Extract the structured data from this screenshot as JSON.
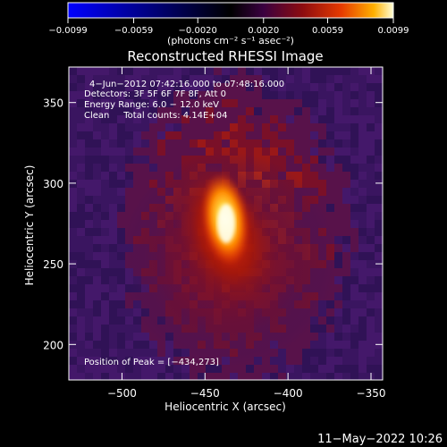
{
  "chart_data": {
    "type": "heatmap",
    "title": "Reconstructed RHESSI Image",
    "xlabel": "Heliocentric X (arcsec)",
    "ylabel": "Heliocentric Y (arcsec)",
    "xlim": [
      -532,
      -343
    ],
    "ylim": [
      178,
      372
    ],
    "x_ticks": [
      {
        "value": -500,
        "label": "−500"
      },
      {
        "value": -450,
        "label": "−450"
      },
      {
        "value": -400,
        "label": "−400"
      },
      {
        "value": -350,
        "label": "−350"
      }
    ],
    "y_ticks": [
      {
        "value": 200,
        "label": "200"
      },
      {
        "value": 250,
        "label": "250"
      },
      {
        "value": 300,
        "label": "300"
      },
      {
        "value": 350,
        "label": "350"
      }
    ],
    "annotations": [
      "4−Jun−2012 07:42:16.000 to 07:48:16.000",
      "Detectors: 3F 5F 6F 7F 8F, Att 0",
      "Energy Range: 6.0 − 12.0 keV",
      "Clean     Total counts: 4.14E+04"
    ],
    "peak_label": "Position of Peak = [−434,273]",
    "peak": {
      "x": -434,
      "y": 273
    },
    "colorbar": {
      "range": [
        -0.0099,
        0.0099
      ],
      "ticks": [
        {
          "value": -0.0099,
          "label": "−0.0099"
        },
        {
          "value": -0.0059,
          "label": "−0.0059"
        },
        {
          "value": -0.002,
          "label": "−0.0020"
        },
        {
          "value": 0.002,
          "label": "0.0020"
        },
        {
          "value": 0.0059,
          "label": "0.0059"
        },
        {
          "value": 0.0099,
          "label": "0.0099"
        }
      ],
      "unit_label": "(photons cm⁻² s⁻¹ asec⁻²)",
      "colors": [
        "#0000ff",
        "#000033",
        "#300040",
        "#7a0a10",
        "#e03000",
        "#ffa000",
        "#ffffd0"
      ]
    },
    "background_color": "#3a1560",
    "grid": false,
    "timestamp": "11−May−2022 10:26"
  }
}
